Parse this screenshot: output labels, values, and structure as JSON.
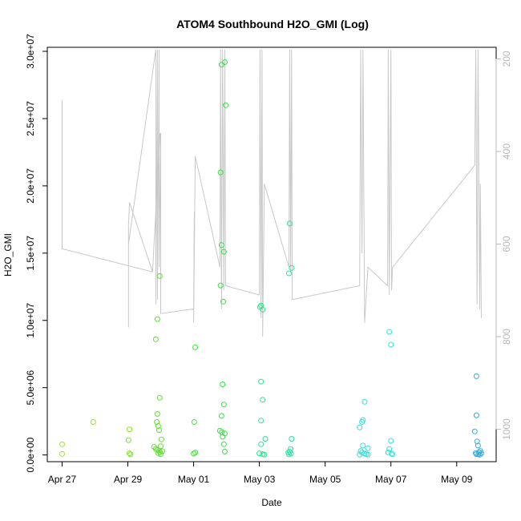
{
  "chart_data": {
    "type": "scatter",
    "title": "ATOM4 Southbound H2O_GMI (Log)",
    "xlabel": "Date",
    "ylabel": "H2O_GMI",
    "x_ticks": [
      "Apr 27",
      "Apr 29",
      "May 01",
      "May 03",
      "May 05",
      "May 07",
      "May 09"
    ],
    "x_tick_days": [
      0,
      2,
      4,
      6,
      8,
      10,
      12
    ],
    "xlim_days": [
      -0.45,
      13.2
    ],
    "y_ticks": [
      0,
      5000000,
      10000000,
      15000000,
      20000000,
      25000000,
      30000000
    ],
    "y_tick_labels": [
      "0.0e+00",
      "5.0e+06",
      "1.0e+07",
      "1.5e+07",
      "2.0e+07",
      "2.5e+07",
      "3.0e+07"
    ],
    "ylim": [
      -500000,
      30300000
    ],
    "right_axis": {
      "label": "",
      "ticks": [
        200,
        400,
        600,
        800,
        1000
      ],
      "ylim": [
        1070,
        175
      ],
      "inverted": true,
      "color": "#b8b8b8"
    },
    "grid": false,
    "legend": "none",
    "points": [
      {
        "day": 0.0,
        "value": 800000,
        "color": "#a6e22e"
      },
      {
        "day": 0.0,
        "value": 80000,
        "color": "#a6e22e"
      },
      {
        "day": 0.95,
        "value": 2450000,
        "color": "#9ae22e"
      },
      {
        "day": 2.05,
        "value": 1900000,
        "color": "#7ee22e"
      },
      {
        "day": 2.02,
        "value": 1100000,
        "color": "#7ee22e"
      },
      {
        "day": 2.05,
        "value": 120000,
        "color": "#7ee22e"
      },
      {
        "day": 2.08,
        "value": 40000,
        "color": "#7ee22e"
      },
      {
        "day": 2.85,
        "value": 8600000,
        "color": "#5de22e"
      },
      {
        "day": 2.9,
        "value": 10100000,
        "color": "#5de22e"
      },
      {
        "day": 2.97,
        "value": 13300000,
        "color": "#5de22e"
      },
      {
        "day": 2.97,
        "value": 4250000,
        "color": "#5de22e"
      },
      {
        "day": 2.9,
        "value": 3050000,
        "color": "#5de22e"
      },
      {
        "day": 2.88,
        "value": 2450000,
        "color": "#5de22e"
      },
      {
        "day": 2.92,
        "value": 2150000,
        "color": "#5de22e"
      },
      {
        "day": 2.95,
        "value": 1850000,
        "color": "#5de22e"
      },
      {
        "day": 3.02,
        "value": 1150000,
        "color": "#5de22e"
      },
      {
        "day": 2.8,
        "value": 600000,
        "color": "#5de22e"
      },
      {
        "day": 2.85,
        "value": 450000,
        "color": "#5de22e"
      },
      {
        "day": 2.9,
        "value": 380000,
        "color": "#5de22e"
      },
      {
        "day": 2.95,
        "value": 320000,
        "color": "#5de22e"
      },
      {
        "day": 3.0,
        "value": 650000,
        "color": "#5de22e"
      },
      {
        "day": 3.05,
        "value": 280000,
        "color": "#5de22e"
      },
      {
        "day": 2.98,
        "value": 200000,
        "color": "#5de22e"
      },
      {
        "day": 2.92,
        "value": 140000,
        "color": "#5de22e"
      },
      {
        "day": 3.0,
        "value": 60000,
        "color": "#5de22e"
      },
      {
        "day": 4.05,
        "value": 8000000,
        "color": "#46e23e"
      },
      {
        "day": 4.02,
        "value": 2450000,
        "color": "#46e23e"
      },
      {
        "day": 4.0,
        "value": 100000,
        "color": "#46e23e"
      },
      {
        "day": 4.05,
        "value": 180000,
        "color": "#46e23e"
      },
      {
        "day": 4.85,
        "value": 29000000,
        "color": "#38e24a"
      },
      {
        "day": 4.95,
        "value": 29200000,
        "color": "#38e24a"
      },
      {
        "day": 4.98,
        "value": 26000000,
        "color": "#38e24a"
      },
      {
        "day": 4.82,
        "value": 21000000,
        "color": "#38e24a"
      },
      {
        "day": 4.85,
        "value": 15600000,
        "color": "#38e24a"
      },
      {
        "day": 4.92,
        "value": 15100000,
        "color": "#38e24a"
      },
      {
        "day": 4.82,
        "value": 12600000,
        "color": "#38e24a"
      },
      {
        "day": 4.9,
        "value": 11400000,
        "color": "#38e24a"
      },
      {
        "day": 4.88,
        "value": 5250000,
        "color": "#38e24a"
      },
      {
        "day": 4.92,
        "value": 3750000,
        "color": "#38e24a"
      },
      {
        "day": 4.85,
        "value": 2900000,
        "color": "#38e24a"
      },
      {
        "day": 4.8,
        "value": 1800000,
        "color": "#38e24a"
      },
      {
        "day": 4.86,
        "value": 1700000,
        "color": "#38e24a"
      },
      {
        "day": 4.95,
        "value": 1600000,
        "color": "#38e24a"
      },
      {
        "day": 4.88,
        "value": 1350000,
        "color": "#38e24a"
      },
      {
        "day": 4.92,
        "value": 800000,
        "color": "#38e24a"
      },
      {
        "day": 4.95,
        "value": 250000,
        "color": "#38e24a"
      },
      {
        "day": 6.05,
        "value": 11100000,
        "color": "#2ee28a"
      },
      {
        "day": 6.02,
        "value": 11000000,
        "color": "#2ee28a"
      },
      {
        "day": 6.1,
        "value": 10800000,
        "color": "#2ee28a"
      },
      {
        "day": 6.05,
        "value": 5450000,
        "color": "#2ee28a"
      },
      {
        "day": 6.1,
        "value": 4100000,
        "color": "#2ee28a"
      },
      {
        "day": 6.05,
        "value": 2550000,
        "color": "#2ee28a"
      },
      {
        "day": 6.18,
        "value": 1200000,
        "color": "#2ee28a"
      },
      {
        "day": 6.05,
        "value": 800000,
        "color": "#2ee28a"
      },
      {
        "day": 6.0,
        "value": 120000,
        "color": "#2ee28a"
      },
      {
        "day": 6.1,
        "value": 60000,
        "color": "#2ee28a"
      },
      {
        "day": 6.15,
        "value": 30000,
        "color": "#2ee28a"
      },
      {
        "day": 6.92,
        "value": 17200000,
        "color": "#2ee2a0"
      },
      {
        "day": 6.9,
        "value": 13500000,
        "color": "#2ee2a0"
      },
      {
        "day": 6.98,
        "value": 13900000,
        "color": "#2ee2a0"
      },
      {
        "day": 6.98,
        "value": 1200000,
        "color": "#2ee2a0"
      },
      {
        "day": 6.95,
        "value": 450000,
        "color": "#2ee2a0"
      },
      {
        "day": 6.92,
        "value": 250000,
        "color": "#2ee2a0"
      },
      {
        "day": 6.88,
        "value": 180000,
        "color": "#2ee2a0"
      },
      {
        "day": 6.96,
        "value": 100000,
        "color": "#2ee2a0"
      },
      {
        "day": 6.9,
        "value": 40000,
        "color": "#2ee2a0"
      },
      {
        "day": 9.2,
        "value": 3950000,
        "color": "#2ee2d6"
      },
      {
        "day": 9.15,
        "value": 2600000,
        "color": "#2ee2d6"
      },
      {
        "day": 9.12,
        "value": 2450000,
        "color": "#2ee2d6"
      },
      {
        "day": 9.05,
        "value": 2050000,
        "color": "#2ee2d6"
      },
      {
        "day": 9.15,
        "value": 700000,
        "color": "#2ee2d6"
      },
      {
        "day": 9.3,
        "value": 500000,
        "color": "#2ee2d6"
      },
      {
        "day": 9.08,
        "value": 300000,
        "color": "#2ee2d6"
      },
      {
        "day": 9.12,
        "value": 180000,
        "color": "#2ee2d6"
      },
      {
        "day": 9.2,
        "value": 100000,
        "color": "#2ee2d6"
      },
      {
        "day": 9.25,
        "value": 60000,
        "color": "#2ee2d6"
      },
      {
        "day": 9.05,
        "value": 30000,
        "color": "#2ee2d6"
      },
      {
        "day": 9.3,
        "value": 20000,
        "color": "#2ee2d6"
      },
      {
        "day": 9.95,
        "value": 9150000,
        "color": "#2ee2e2"
      },
      {
        "day": 10.0,
        "value": 8200000,
        "color": "#2ee2e2"
      },
      {
        "day": 10.0,
        "value": 1050000,
        "color": "#2ee2e2"
      },
      {
        "day": 9.95,
        "value": 450000,
        "color": "#2ee2e2"
      },
      {
        "day": 9.92,
        "value": 200000,
        "color": "#2ee2e2"
      },
      {
        "day": 10.02,
        "value": 100000,
        "color": "#2ee2e2"
      },
      {
        "day": 10.05,
        "value": 40000,
        "color": "#2ee2e2"
      },
      {
        "day": 12.6,
        "value": 5850000,
        "color": "#2eaee2"
      },
      {
        "day": 12.6,
        "value": 2950000,
        "color": "#2eaee2"
      },
      {
        "day": 12.55,
        "value": 1750000,
        "color": "#2eaee2"
      },
      {
        "day": 12.62,
        "value": 1000000,
        "color": "#2eaee2"
      },
      {
        "day": 12.65,
        "value": 700000,
        "color": "#2eaee2"
      },
      {
        "day": 12.72,
        "value": 300000,
        "color": "#2eaee2"
      },
      {
        "day": 12.68,
        "value": 200000,
        "color": "#2eaee2"
      },
      {
        "day": 12.58,
        "value": 150000,
        "color": "#2eaee2"
      },
      {
        "day": 12.75,
        "value": 120000,
        "color": "#2eaee2"
      },
      {
        "day": 12.6,
        "value": 60000,
        "color": "#2eaee2"
      },
      {
        "day": 12.66,
        "value": 40000,
        "color": "#2eaee2"
      },
      {
        "day": 12.7,
        "value": 20000,
        "color": "#2eaee2"
      }
    ],
    "pressure_track": {
      "color": "#c8c8c8",
      "points": [
        {
          "day": 0.0,
          "pressure": 290
        },
        {
          "day": 0.0,
          "pressure": 610
        },
        {
          "day": 2.75,
          "pressure": 660
        },
        {
          "day": 2.98,
          "pressure": 360
        },
        {
          "day": 2.75,
          "pressure": 660
        },
        {
          "day": 2.05,
          "pressure": 510
        },
        {
          "day": 2.02,
          "pressure": 560
        },
        {
          "day": 2.02,
          "pressure": 780
        },
        {
          "day": 2.02,
          "pressure": 600
        },
        {
          "day": 2.85,
          "pressure": 180
        },
        {
          "day": 2.85,
          "pressure": 730
        },
        {
          "day": 2.9,
          "pressure": 180
        },
        {
          "day": 2.9,
          "pressure": 720
        },
        {
          "day": 2.95,
          "pressure": 180
        },
        {
          "day": 2.95,
          "pressure": 650
        },
        {
          "day": 3.0,
          "pressure": 360
        },
        {
          "day": 3.0,
          "pressure": 750
        },
        {
          "day": 4.0,
          "pressure": 740
        },
        {
          "day": 4.02,
          "pressure": 530
        },
        {
          "day": 4.0,
          "pressure": 770
        },
        {
          "day": 4.05,
          "pressure": 410
        },
        {
          "day": 4.8,
          "pressure": 650
        },
        {
          "day": 4.82,
          "pressure": 180
        },
        {
          "day": 4.85,
          "pressure": 740
        },
        {
          "day": 4.88,
          "pressure": 180
        },
        {
          "day": 4.92,
          "pressure": 700
        },
        {
          "day": 4.95,
          "pressure": 180
        },
        {
          "day": 4.97,
          "pressure": 690
        },
        {
          "day": 6.0,
          "pressure": 710
        },
        {
          "day": 6.02,
          "pressure": 180
        },
        {
          "day": 6.05,
          "pressure": 760
        },
        {
          "day": 6.08,
          "pressure": 180
        },
        {
          "day": 6.1,
          "pressure": 800
        },
        {
          "day": 6.15,
          "pressure": 470
        },
        {
          "day": 6.9,
          "pressure": 650
        },
        {
          "day": 6.92,
          "pressure": 180
        },
        {
          "day": 6.95,
          "pressure": 660
        },
        {
          "day": 6.98,
          "pressure": 180
        },
        {
          "day": 7.0,
          "pressure": 720
        },
        {
          "day": 9.05,
          "pressure": 690
        },
        {
          "day": 9.08,
          "pressure": 180
        },
        {
          "day": 9.12,
          "pressure": 620
        },
        {
          "day": 9.15,
          "pressure": 180
        },
        {
          "day": 9.2,
          "pressure": 770
        },
        {
          "day": 9.3,
          "pressure": 650
        },
        {
          "day": 9.9,
          "pressure": 690
        },
        {
          "day": 9.92,
          "pressure": 180
        },
        {
          "day": 9.95,
          "pressure": 710
        },
        {
          "day": 10.0,
          "pressure": 180
        },
        {
          "day": 10.02,
          "pressure": 700
        },
        {
          "day": 10.05,
          "pressure": 650
        },
        {
          "day": 12.55,
          "pressure": 430
        },
        {
          "day": 12.58,
          "pressure": 180
        },
        {
          "day": 12.62,
          "pressure": 730
        },
        {
          "day": 12.65,
          "pressure": 180
        },
        {
          "day": 12.7,
          "pressure": 740
        },
        {
          "day": 12.72,
          "pressure": 470
        },
        {
          "day": 12.75,
          "pressure": 760
        }
      ]
    }
  }
}
